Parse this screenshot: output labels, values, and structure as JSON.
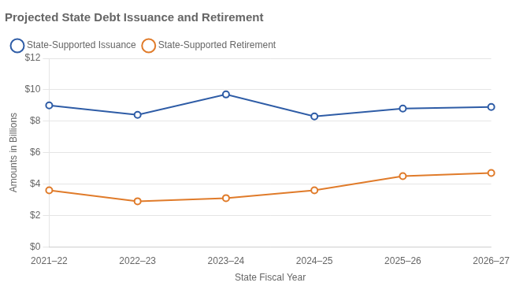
{
  "chart_data": {
    "type": "line",
    "title": "Projected State Debt Issuance and Retirement",
    "xlabel": "State Fiscal Year",
    "ylabel": "Amounts in Billions",
    "categories": [
      "2021–22",
      "2022–23",
      "2023–24",
      "2024–25",
      "2025–26",
      "2026–27"
    ],
    "series": [
      {
        "name": "State-Supported Issuance",
        "color": "#2E5CA6",
        "marker": "circle",
        "values": [
          9.0,
          8.4,
          9.7,
          8.3,
          8.8,
          8.9
        ]
      },
      {
        "name": "State-Supported Retirement",
        "color": "#E07B2A",
        "marker": "circle",
        "values": [
          3.6,
          2.9,
          3.1,
          3.6,
          4.5,
          4.7
        ]
      }
    ],
    "ylim": [
      0,
      12
    ],
    "yticks": [
      {
        "value": 0,
        "label": "$0"
      },
      {
        "value": 2,
        "label": "$2"
      },
      {
        "value": 4,
        "label": "$4"
      },
      {
        "value": 6,
        "label": "$6"
      },
      {
        "value": 8,
        "label": "$8"
      },
      {
        "value": 10,
        "label": "$10"
      },
      {
        "value": 12,
        "label": "$12"
      }
    ],
    "grid": true,
    "legend": "upper left"
  }
}
